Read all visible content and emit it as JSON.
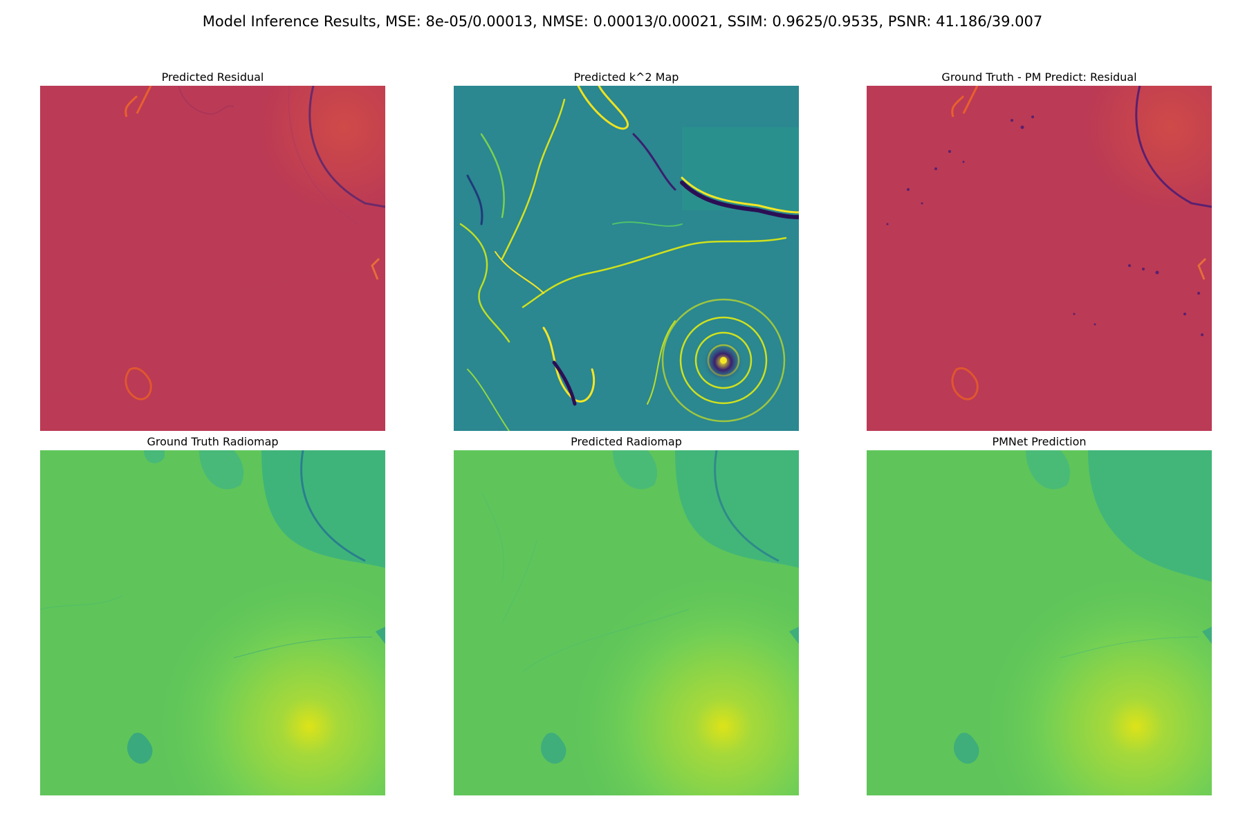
{
  "figure": {
    "suptitle": "Model Inference Results, MSE: 8e-05/0.00013, NMSE: 0.00013/0.00021, SSIM: 0.9625/0.9535, PSNR: 41.186/39.007"
  },
  "panels": [
    {
      "title": "Predicted Residual",
      "colormap": "spectral",
      "base_color": "#bb3a55"
    },
    {
      "title": "Predicted k^2 Map",
      "colormap": "viridis",
      "base_color": "#2b8790"
    },
    {
      "title": "Ground Truth - PM Predict: Residual",
      "colormap": "spectral",
      "base_color": "#bb3a55"
    },
    {
      "title": "Ground Truth Radiomap",
      "colormap": "viridis",
      "base_color": "#5fc55a"
    },
    {
      "title": "Predicted Radiomap",
      "colormap": "viridis",
      "base_color": "#5fc55a"
    },
    {
      "title": "PMNet Prediction",
      "colormap": "viridis",
      "base_color": "#5fc55a"
    }
  ]
}
